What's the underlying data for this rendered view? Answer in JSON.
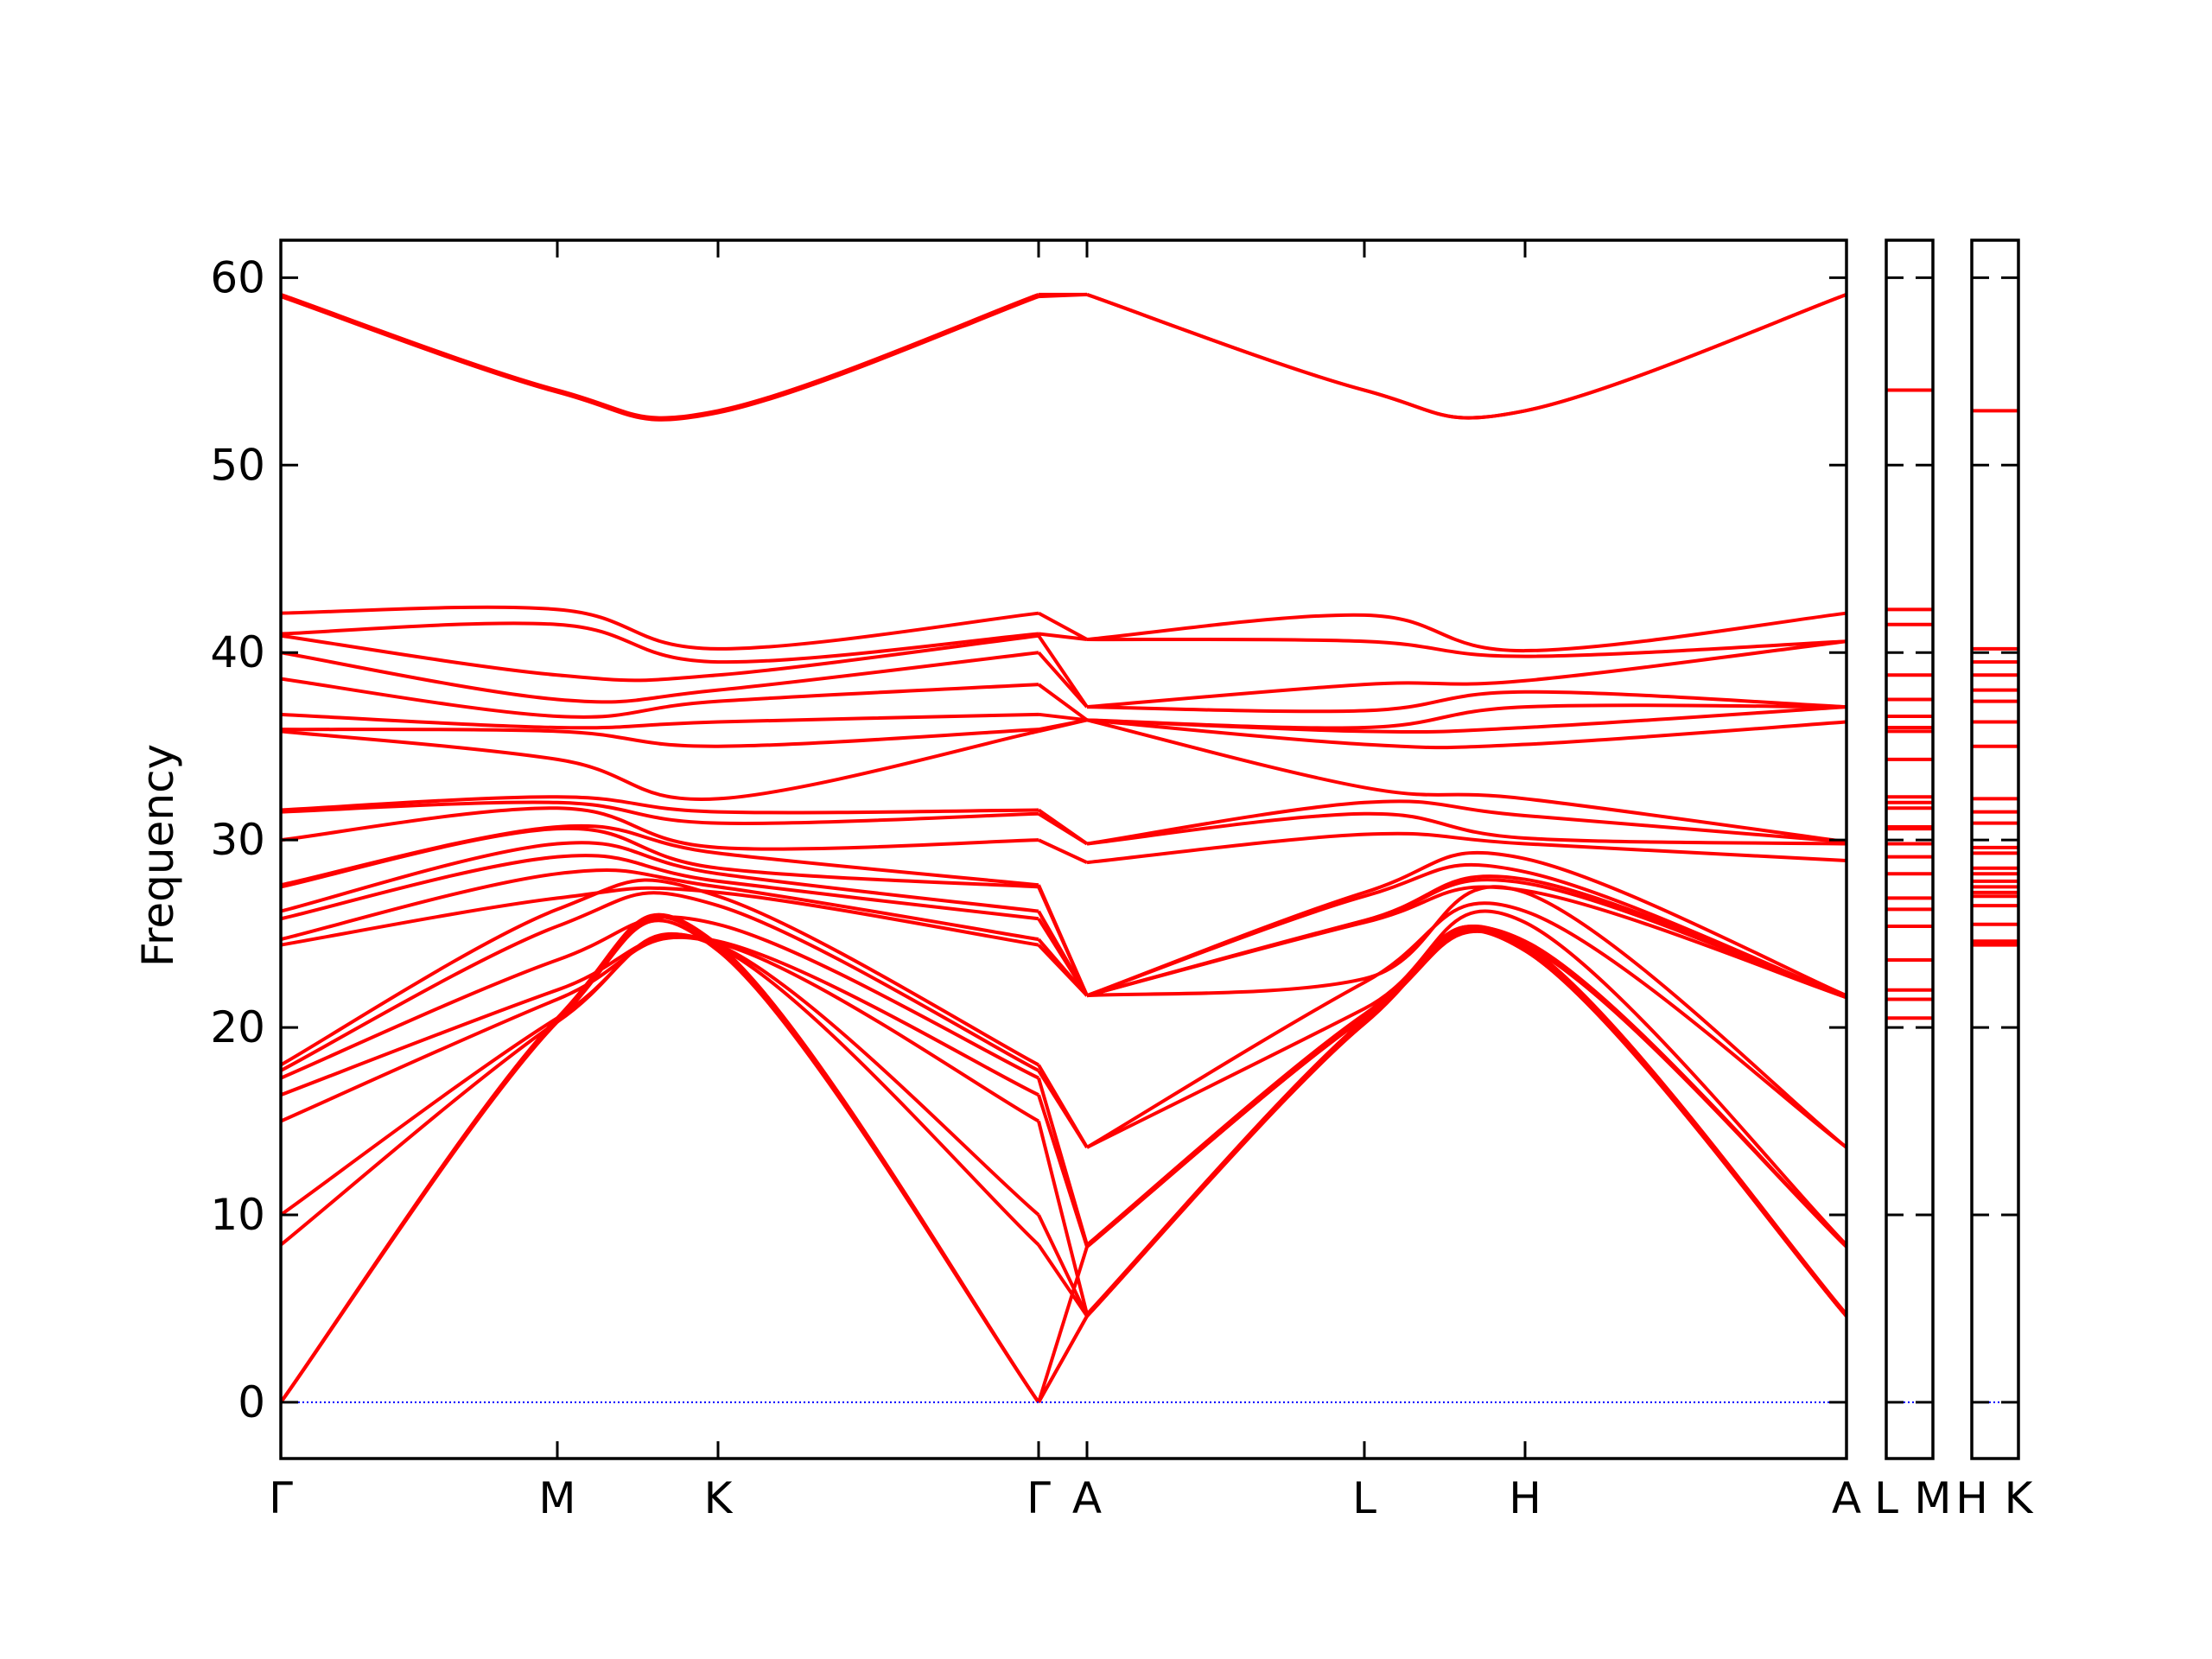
{
  "chart_data": {
    "type": "line",
    "ylabel": "Frequency",
    "ylim": [
      -3,
      62
    ],
    "y_ticks": [
      "0",
      "10",
      "20",
      "30",
      "40",
      "50",
      "60"
    ],
    "x_ticks_main": [
      "Γ",
      "M",
      "K",
      "Γ",
      "A",
      "L",
      "H",
      "A"
    ],
    "x_ticks_panel2": [
      "L",
      "M"
    ],
    "x_ticks_panel3": [
      "H",
      "K"
    ],
    "colors": {
      "bands": "#ff0000",
      "zero_line": "#0000ff",
      "axis": "#000000"
    },
    "series": [
      {
        "values": [
          59.1,
          54.0,
          52.9,
          59.1,
          59.1,
          54.0,
          52.9,
          59.1
        ]
      },
      {
        "values": [
          59.0,
          53.9,
          52.8,
          59.0,
          59.1,
          54.0,
          52.9,
          59.1
        ]
      },
      {
        "values": [
          42.1,
          42.3,
          40.2,
          42.1,
          40.7,
          42.0,
          40.1,
          42.1
        ]
      },
      {
        "values": [
          41.0,
          41.5,
          39.5,
          41.0,
          40.7,
          40.6,
          39.8,
          40.6
        ]
      },
      {
        "values": [
          40.9,
          38.8,
          38.8,
          40.9,
          37.1,
          38.3,
          38.5,
          40.6
        ]
      },
      {
        "values": [
          40.0,
          37.5,
          38.0,
          40.0,
          37.1,
          36.9,
          37.9,
          37.1
        ]
      },
      {
        "values": [
          38.6,
          36.6,
          37.4,
          38.3,
          36.4,
          36.0,
          37.1,
          37.1
        ]
      },
      {
        "values": [
          36.7,
          36.0,
          36.3,
          36.7,
          36.4,
          35.8,
          36.0,
          37.1
        ]
      },
      {
        "values": [
          35.9,
          35.8,
          35.0,
          35.9,
          36.4,
          35.1,
          35.1,
          36.3
        ]
      },
      {
        "values": [
          35.8,
          34.3,
          32.2,
          35.8,
          36.4,
          32.8,
          32.2,
          29.9
        ]
      },
      {
        "values": [
          31.6,
          32.3,
          31.5,
          31.6,
          29.8,
          32.0,
          31.3,
          29.9
        ]
      },
      {
        "values": [
          31.5,
          32.0,
          30.9,
          31.4,
          29.8,
          31.4,
          30.1,
          29.8
        ]
      },
      {
        "values": [
          30.0,
          31.7,
          29.6,
          30.0,
          28.8,
          30.3,
          29.8,
          28.9
        ]
      },
      {
        "values": [
          27.6,
          30.7,
          29.3,
          27.6,
          21.7,
          27.2,
          29.0,
          21.7
        ]
      },
      {
        "values": [
          27.5,
          30.6,
          28.5,
          27.5,
          21.7,
          27.0,
          28.3,
          21.6
        ]
      },
      {
        "values": [
          26.2,
          29.8,
          28.2,
          26.2,
          21.7,
          25.7,
          27.9,
          21.6
        ]
      },
      {
        "values": [
          25.8,
          29.1,
          27.8,
          25.8,
          21.7,
          25.7,
          27.7,
          21.6
        ]
      },
      {
        "values": [
          24.7,
          28.2,
          27.5,
          24.7,
          21.7,
          25.6,
          27.3,
          21.6
        ]
      },
      {
        "values": [
          24.4,
          26.9,
          27.2,
          24.4,
          21.7,
          22.6,
          27.2,
          13.6
        ]
      },
      {
        "values": [
          18.0,
          26.3,
          27.0,
          18.0,
          13.6,
          22.4,
          26.2,
          13.6
        ]
      },
      {
        "values": [
          17.7,
          25.4,
          26.5,
          17.7,
          13.6,
          21.0,
          25.6,
          8.4
        ]
      },
      {
        "values": [
          17.3,
          23.6,
          25.5,
          17.3,
          8.4,
          20.7,
          24.6,
          8.3
        ]
      },
      {
        "values": [
          16.4,
          22.0,
          24.6,
          16.4,
          8.3,
          20.5,
          24.4,
          4.7
        ]
      },
      {
        "values": [
          15.0,
          21.5,
          24.5,
          15.0,
          4.7,
          20.4,
          24.3,
          4.6
        ]
      },
      {
        "values": [
          10.0,
          20.5,
          24.4,
          10.0,
          4.6,
          20.3,
          24.2,
          4.6
        ]
      },
      {
        "values": [
          8.4,
          20.3,
          24.3,
          8.4,
          4.6,
          20.2,
          24.1,
          4.6
        ]
      }
    ],
    "panel2_levels": [
      54.0,
      42.3,
      41.5,
      38.8,
      37.5,
      36.6,
      36.0,
      35.8,
      34.3,
      32.3,
      32.0,
      31.7,
      30.7,
      30.6,
      29.8,
      29.1,
      28.2,
      26.9,
      26.3,
      25.4,
      23.6,
      22.0,
      21.5,
      20.5
    ],
    "panel3_levels": [
      52.9,
      40.2,
      39.5,
      38.8,
      38.0,
      37.4,
      36.3,
      35.0,
      32.2,
      31.5,
      30.9,
      29.6,
      29.3,
      28.5,
      28.2,
      27.8,
      27.5,
      27.2,
      27.0,
      26.5,
      25.5,
      24.6,
      24.5,
      24.4
    ]
  }
}
